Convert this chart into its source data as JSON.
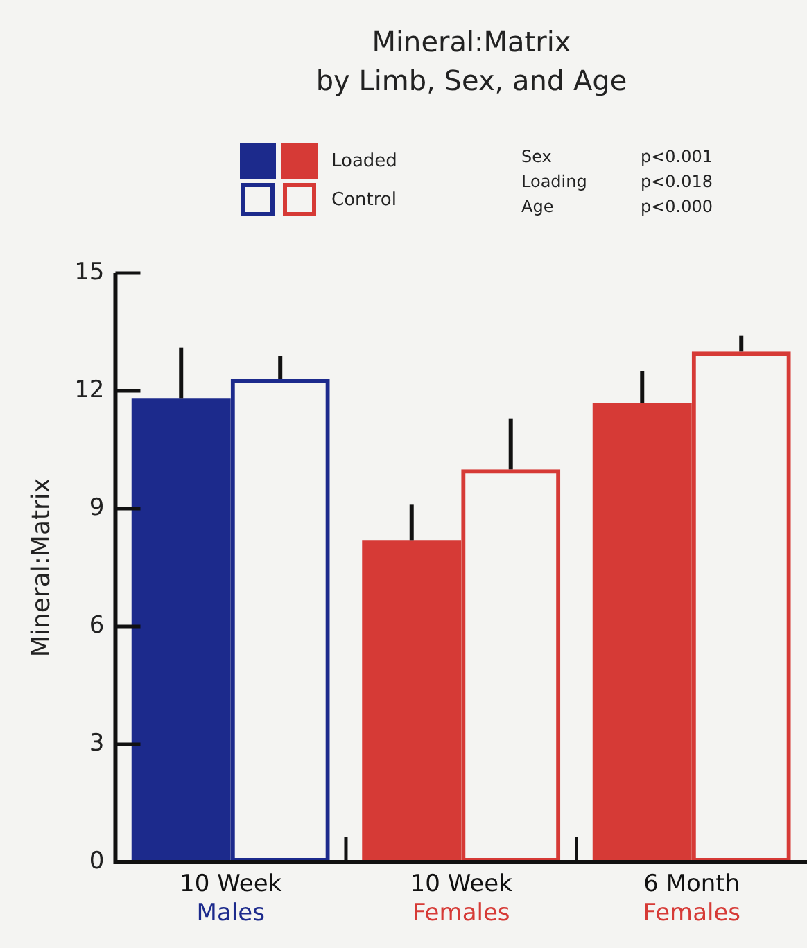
{
  "chart_data": {
    "type": "bar",
    "title": "Mineral:Matrix\nby Limb, Sex, and Age",
    "ylabel": "Mineral:Matrix",
    "categories": [
      "10 Week\nMales",
      "10 Week\nFemales",
      "6 Month\nFemales"
    ],
    "series": [
      {
        "name": "Loaded",
        "colors": [
          "#1c2a8c",
          "#d63a36",
          "#d63a36"
        ],
        "values": [
          11.8,
          8.2,
          11.7
        ],
        "errors": [
          [
            11.8,
            13.1
          ],
          [
            8.2,
            9.1
          ],
          [
            11.7,
            12.5
          ]
        ]
      },
      {
        "name": "Control",
        "colors": [
          "#1c2a8c",
          "#d63a36",
          "#d63a36"
        ],
        "values": [
          12.3,
          10.0,
          13.0
        ],
        "errors": [
          [
            12.3,
            12.9
          ],
          [
            10.0,
            11.3
          ],
          [
            13.0,
            13.4
          ]
        ]
      }
    ],
    "ylim": [
      0,
      15
    ],
    "yticks": [
      0,
      3,
      6,
      9,
      12,
      15
    ],
    "grid": false,
    "legend": "top left",
    "annotations": [
      "Sex p<0.001",
      "Loading p<0.018",
      "Age p<0.000"
    ]
  }
}
